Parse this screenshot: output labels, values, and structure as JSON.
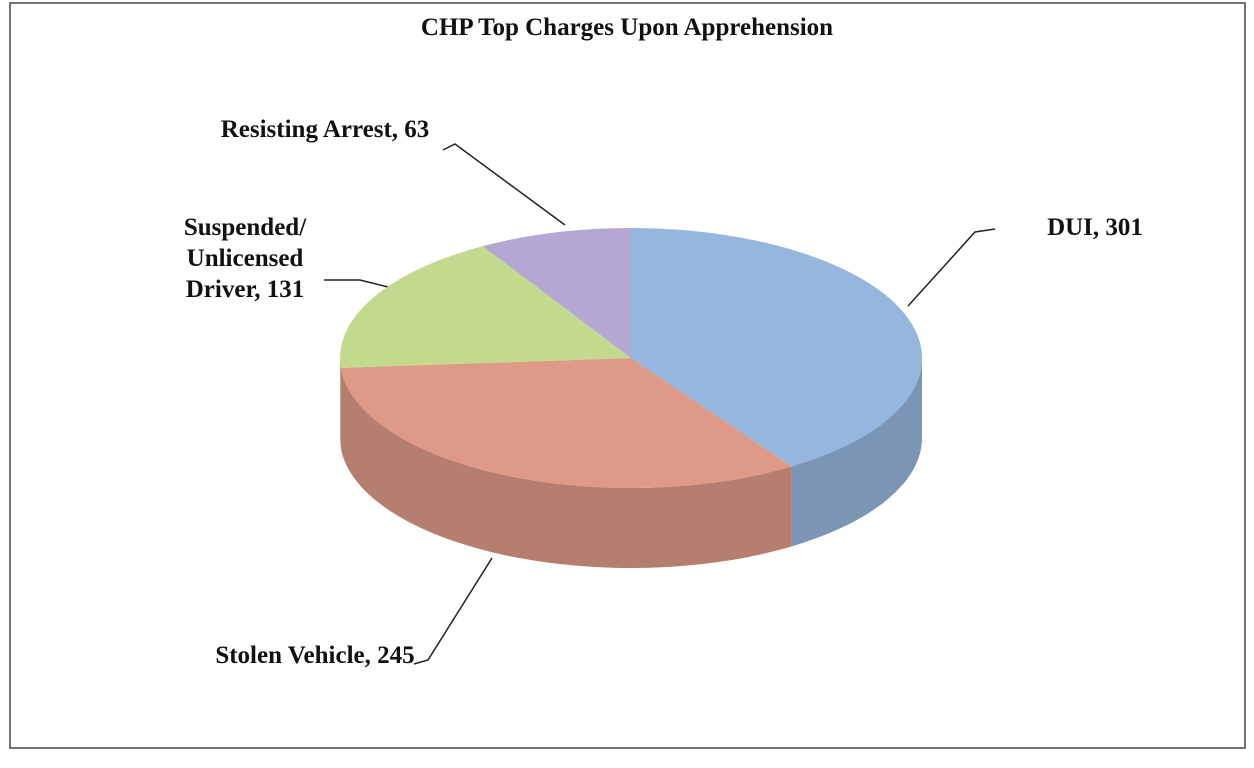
{
  "chart_data": {
    "type": "pie",
    "title": "CHP Top Charges Upon Apprehension",
    "values": [
      301,
      245,
      131,
      63
    ],
    "value_labels": [
      "DUI, 301",
      "Stolen Vehicle, 245",
      "Suspended/ Unlicensed Driver, 131",
      "Resisting Arrest, 63"
    ],
    "colors": [
      "#95b6de",
      "#de9a86",
      "#c2d98e",
      "#b4a8d2"
    ]
  }
}
